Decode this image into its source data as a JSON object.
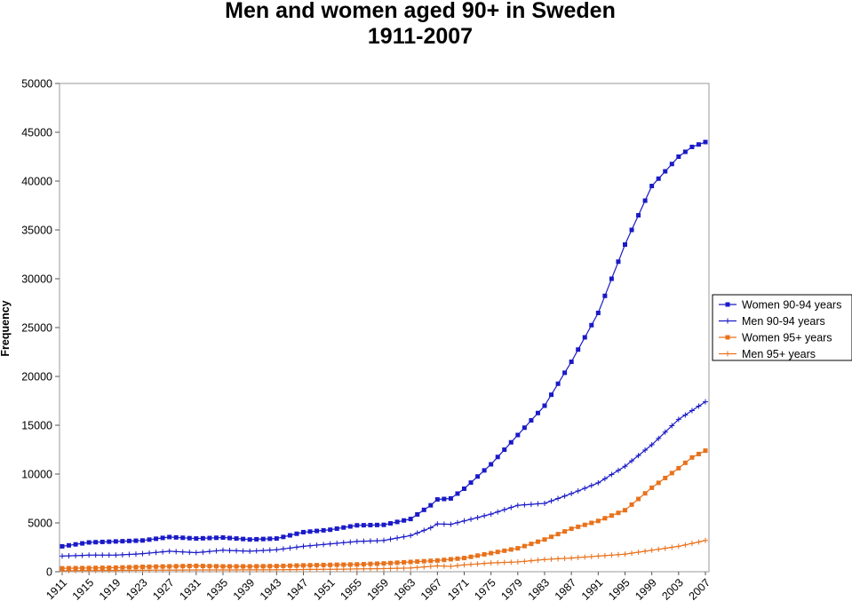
{
  "chart_data": {
    "type": "line",
    "title": "Men and women aged 90+ in Sweden",
    "subtitle": "1911-2007",
    "xlabel": "",
    "ylabel": "Frequency",
    "ylim": [
      0,
      50000
    ],
    "yticks": [
      0,
      5000,
      10000,
      15000,
      20000,
      25000,
      30000,
      35000,
      40000,
      45000,
      50000
    ],
    "xlim": [
      1911,
      2007
    ],
    "xticks": [
      1911,
      1915,
      1919,
      1923,
      1927,
      1931,
      1935,
      1939,
      1943,
      1947,
      1951,
      1955,
      1959,
      1963,
      1967,
      1971,
      1975,
      1979,
      1983,
      1987,
      1991,
      1995,
      1999,
      2003,
      2007
    ],
    "grid": false,
    "legend_position": "right",
    "series": [
      {
        "name": "Women 90-94 years",
        "color": "#1a1ac8",
        "marker": "square",
        "points": [
          [
            1911,
            2600
          ],
          [
            1915,
            3000
          ],
          [
            1919,
            3100
          ],
          [
            1923,
            3200
          ],
          [
            1927,
            3550
          ],
          [
            1931,
            3400
          ],
          [
            1935,
            3500
          ],
          [
            1939,
            3300
          ],
          [
            1943,
            3400
          ],
          [
            1947,
            4050
          ],
          [
            1951,
            4300
          ],
          [
            1955,
            4750
          ],
          [
            1959,
            4800
          ],
          [
            1963,
            5400
          ],
          [
            1966,
            6800
          ],
          [
            1967,
            7400
          ],
          [
            1969,
            7500
          ],
          [
            1971,
            8500
          ],
          [
            1975,
            11000
          ],
          [
            1979,
            14000
          ],
          [
            1983,
            17000
          ],
          [
            1987,
            21500
          ],
          [
            1991,
            26500
          ],
          [
            1995,
            33500
          ],
          [
            1999,
            39500
          ],
          [
            2003,
            42500
          ],
          [
            2005,
            43500
          ],
          [
            2007,
            44000
          ]
        ]
      },
      {
        "name": "Men 90-94 years",
        "color": "#1a1ac8",
        "marker": "plus",
        "points": [
          [
            1911,
            1600
          ],
          [
            1915,
            1700
          ],
          [
            1919,
            1700
          ],
          [
            1923,
            1850
          ],
          [
            1927,
            2100
          ],
          [
            1931,
            1950
          ],
          [
            1935,
            2200
          ],
          [
            1939,
            2100
          ],
          [
            1943,
            2250
          ],
          [
            1947,
            2600
          ],
          [
            1951,
            2850
          ],
          [
            1955,
            3100
          ],
          [
            1959,
            3200
          ],
          [
            1963,
            3700
          ],
          [
            1966,
            4500
          ],
          [
            1967,
            4900
          ],
          [
            1969,
            4850
          ],
          [
            1971,
            5200
          ],
          [
            1975,
            5900
          ],
          [
            1979,
            6800
          ],
          [
            1983,
            7000
          ],
          [
            1987,
            8000
          ],
          [
            1991,
            9100
          ],
          [
            1995,
            10800
          ],
          [
            1999,
            13000
          ],
          [
            2003,
            15600
          ],
          [
            2005,
            16500
          ],
          [
            2007,
            17400
          ]
        ]
      },
      {
        "name": "Women 95+ years",
        "color": "#e8721c",
        "marker": "square",
        "points": [
          [
            1911,
            350
          ],
          [
            1915,
            380
          ],
          [
            1919,
            420
          ],
          [
            1923,
            500
          ],
          [
            1927,
            550
          ],
          [
            1931,
            600
          ],
          [
            1935,
            550
          ],
          [
            1939,
            550
          ],
          [
            1943,
            580
          ],
          [
            1947,
            650
          ],
          [
            1951,
            700
          ],
          [
            1955,
            750
          ],
          [
            1959,
            850
          ],
          [
            1963,
            1000
          ],
          [
            1967,
            1150
          ],
          [
            1971,
            1400
          ],
          [
            1975,
            1900
          ],
          [
            1979,
            2400
          ],
          [
            1983,
            3300
          ],
          [
            1987,
            4400
          ],
          [
            1991,
            5200
          ],
          [
            1995,
            6300
          ],
          [
            1999,
            8600
          ],
          [
            2003,
            10600
          ],
          [
            2005,
            11700
          ],
          [
            2007,
            12400
          ]
        ]
      },
      {
        "name": "Men 95+ years",
        "color": "#e8721c",
        "marker": "plus",
        "points": [
          [
            1911,
            100
          ],
          [
            1915,
            120
          ],
          [
            1919,
            130
          ],
          [
            1923,
            150
          ],
          [
            1927,
            170
          ],
          [
            1931,
            180
          ],
          [
            1935,
            180
          ],
          [
            1939,
            190
          ],
          [
            1943,
            200
          ],
          [
            1947,
            230
          ],
          [
            1951,
            250
          ],
          [
            1955,
            280
          ],
          [
            1959,
            320
          ],
          [
            1963,
            380
          ],
          [
            1967,
            600
          ],
          [
            1969,
            550
          ],
          [
            1971,
            700
          ],
          [
            1975,
            900
          ],
          [
            1979,
            1000
          ],
          [
            1983,
            1250
          ],
          [
            1987,
            1400
          ],
          [
            1991,
            1600
          ],
          [
            1995,
            1800
          ],
          [
            1999,
            2200
          ],
          [
            2003,
            2600
          ],
          [
            2005,
            2900
          ],
          [
            2007,
            3200
          ]
        ]
      }
    ]
  }
}
